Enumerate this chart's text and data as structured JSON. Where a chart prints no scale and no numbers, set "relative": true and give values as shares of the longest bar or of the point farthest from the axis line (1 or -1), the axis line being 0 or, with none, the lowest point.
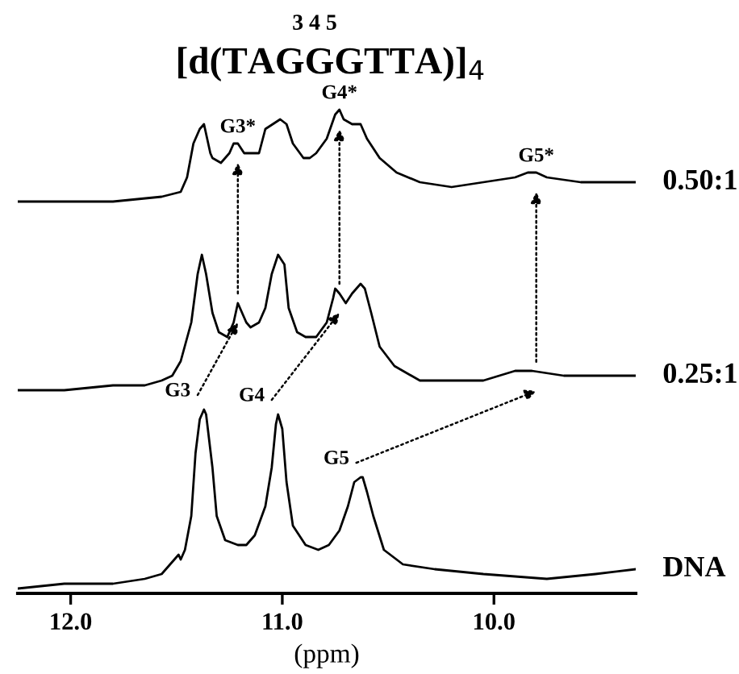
{
  "chart_data": {
    "type": "line",
    "title": "[d(TAGGGTTA)]$_{4}$",
    "subtitle": "3 4 5",
    "xlabel": "(ppm)",
    "relative": true,
    "tick_labels": "x",
    "legend": false,
    "grid": false,
    "marker": "none",
    "line_style": "solid",
    "xlim": [
      12.25,
      9.33
    ],
    "xticks": [
      {
        "value": 12,
        "label": "12.0"
      },
      {
        "value": 11,
        "label": "11.0"
      },
      {
        "value": 10,
        "label": "10.0"
      }
    ],
    "series": [
      {
        "name": "0.50:1",
        "color": "#000000",
        "x": [
          12.25,
          12.03,
          11.8,
          11.57,
          11.48,
          11.45,
          11.42,
          11.39,
          11.37,
          11.34,
          11.33,
          11.29,
          11.25,
          11.23,
          11.21,
          11.18,
          11.15,
          11.11,
          11.08,
          11.01,
          10.98,
          10.95,
          10.9,
          10.87,
          10.84,
          10.79,
          10.75,
          10.73,
          10.71,
          10.67,
          10.63,
          10.6,
          10.54,
          10.46,
          10.35,
          10.2,
          10.05,
          9.9,
          9.84,
          9.8,
          9.75,
          9.59,
          9.33
        ],
        "values": [
          0.81,
          0.81,
          0.81,
          0.82,
          0.83,
          0.86,
          0.93,
          0.96,
          0.97,
          0.91,
          0.9,
          0.89,
          0.91,
          0.93,
          0.93,
          0.91,
          0.91,
          0.91,
          0.96,
          0.98,
          0.97,
          0.93,
          0.9,
          0.9,
          0.91,
          0.94,
          0.99,
          1.0,
          0.98,
          0.97,
          0.97,
          0.94,
          0.9,
          0.87,
          0.85,
          0.84,
          0.85,
          0.86,
          0.87,
          0.87,
          0.86,
          0.85,
          0.85
        ]
      },
      {
        "name": "0.25:1",
        "color": "#000000",
        "x": [
          12.25,
          12.03,
          11.8,
          11.65,
          11.57,
          11.52,
          11.48,
          11.43,
          11.4,
          11.38,
          11.36,
          11.33,
          11.3,
          11.26,
          11.23,
          11.21,
          11.2,
          11.17,
          11.15,
          11.11,
          11.08,
          11.05,
          11.02,
          10.99,
          10.97,
          10.93,
          10.89,
          10.84,
          10.79,
          10.76,
          10.75,
          10.73,
          10.7,
          10.67,
          10.63,
          10.61,
          10.58,
          10.54,
          10.47,
          10.35,
          10.2,
          10.05,
          9.9,
          9.86,
          9.82,
          9.67,
          9.52,
          9.33
        ],
        "values": [
          0.42,
          0.42,
          0.43,
          0.43,
          0.44,
          0.45,
          0.48,
          0.56,
          0.66,
          0.7,
          0.66,
          0.58,
          0.54,
          0.53,
          0.56,
          0.6,
          0.59,
          0.56,
          0.55,
          0.56,
          0.59,
          0.66,
          0.7,
          0.68,
          0.59,
          0.54,
          0.53,
          0.53,
          0.56,
          0.61,
          0.63,
          0.62,
          0.6,
          0.62,
          0.64,
          0.63,
          0.58,
          0.51,
          0.47,
          0.44,
          0.44,
          0.44,
          0.46,
          0.46,
          0.46,
          0.45,
          0.45,
          0.45
        ]
      },
      {
        "name": "DNA",
        "color": "#000000",
        "x": [
          12.25,
          12.03,
          11.8,
          11.65,
          11.57,
          11.51,
          11.49,
          11.48,
          11.46,
          11.43,
          11.41,
          11.39,
          11.37,
          11.36,
          11.33,
          11.31,
          11.27,
          11.21,
          11.17,
          11.13,
          11.08,
          11.05,
          11.03,
          11.02,
          11.0,
          10.98,
          10.95,
          10.89,
          10.83,
          10.78,
          10.73,
          10.69,
          10.66,
          10.63,
          10.62,
          10.6,
          10.57,
          10.52,
          10.43,
          10.28,
          10.05,
          9.75,
          9.52,
          9.33
        ],
        "values": [
          0.01,
          0.02,
          0.02,
          0.03,
          0.04,
          0.07,
          0.08,
          0.07,
          0.09,
          0.16,
          0.29,
          0.36,
          0.38,
          0.37,
          0.26,
          0.16,
          0.11,
          0.1,
          0.1,
          0.12,
          0.18,
          0.26,
          0.35,
          0.37,
          0.34,
          0.23,
          0.14,
          0.1,
          0.09,
          0.1,
          0.13,
          0.18,
          0.23,
          0.24,
          0.24,
          0.21,
          0.16,
          0.09,
          0.06,
          0.05,
          0.04,
          0.03,
          0.04,
          0.05
        ]
      }
    ],
    "annotations": [
      {
        "text": "G3",
        "x": 11.37,
        "y": 0.38
      },
      {
        "text": "G4",
        "x": 11.02,
        "y": 0.37
      },
      {
        "text": "G5",
        "x": 10.62,
        "y": 0.24
      },
      {
        "text": "G3*",
        "x": 11.21,
        "y": 0.93
      },
      {
        "text": "G4*",
        "x": 10.73,
        "y": 1.0
      },
      {
        "text": "G5*",
        "x": 9.8,
        "y": 0.87
      }
    ]
  }
}
